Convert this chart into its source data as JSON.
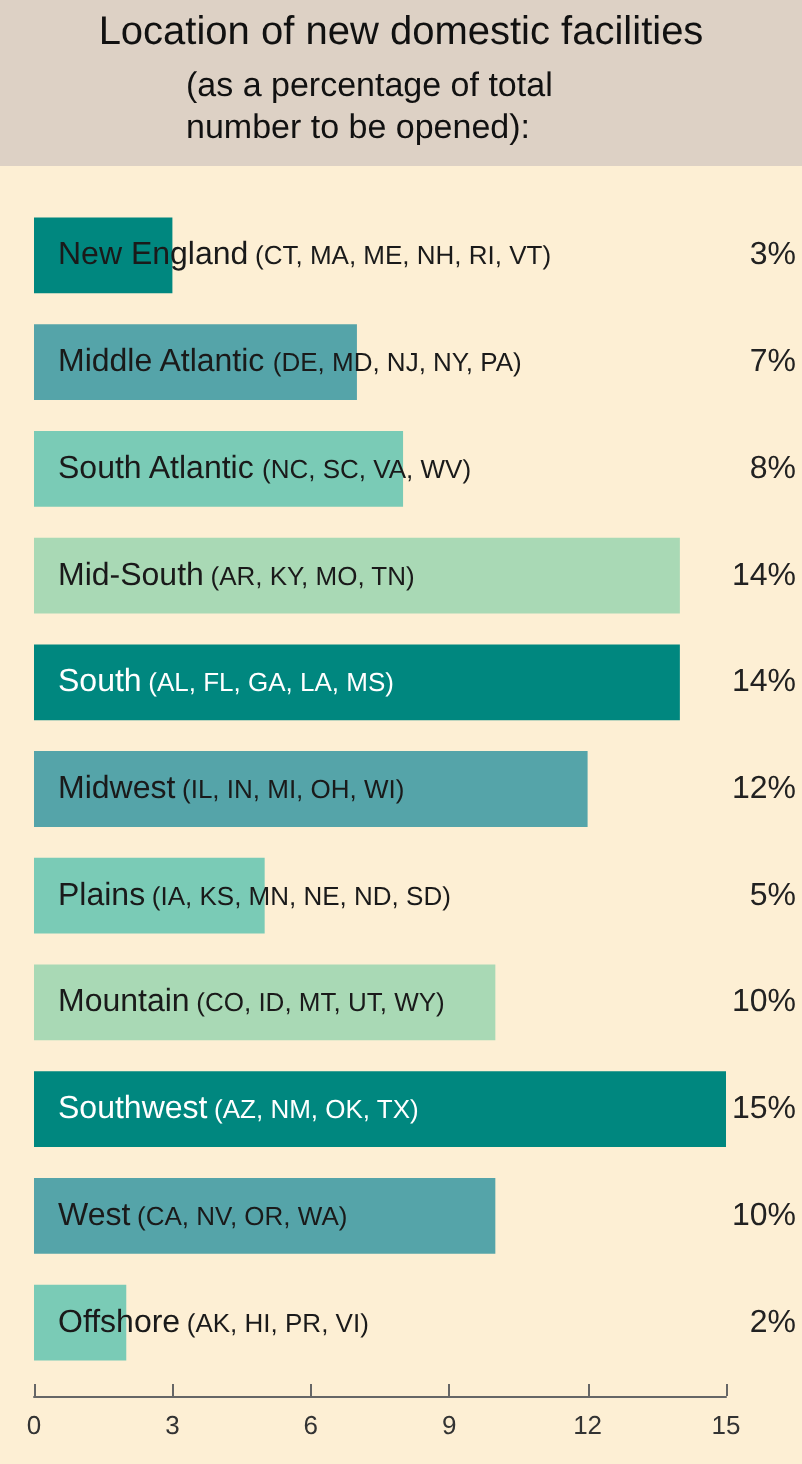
{
  "chart_data": {
    "type": "bar",
    "orientation": "horizontal",
    "title": "Location of new domestic facilities",
    "subtitle": "(as a percentage of total number to be opened):",
    "categories": [
      "New England (CT, MA, ME, NH, RI, VT)",
      "Middle Atlantic (DE, MD, NJ, NY, PA)",
      "South Atlantic (NC, SC, VA, WV)",
      "Mid-South (AR, KY, MO, TN)",
      "South (AL, FL, GA, LA, MS)",
      "Midwest (IL, IN, MI, OH, WI)",
      "Plains (IA, KS, MN, NE, ND, SD)",
      "Mountain (CO, ID, MT, UT, WY)",
      "Southwest (AZ, NM, OK, TX)",
      "West (CA, NV, OR, WA)",
      "Offshore (AK, HI, PR, VI)"
    ],
    "values": [
      3,
      7,
      8,
      14,
      14,
      12,
      5,
      10,
      15,
      10,
      2
    ],
    "colors": [
      "#00877f",
      "#55a4a9",
      "#7acbb6",
      "#a9d9b5",
      "#00877f",
      "#55a4a9",
      "#7acbb6",
      "#a9d9b5",
      "#00877f",
      "#55a4a9",
      "#7acbb6"
    ],
    "value_labels": [
      "3%",
      "7%",
      "8%",
      "14%",
      "14%",
      "12%",
      "5%",
      "10%",
      "15%",
      "10%",
      "2%"
    ],
    "xlim": [
      0,
      15
    ],
    "xticks": [
      0,
      3,
      6,
      9,
      12,
      15
    ],
    "grid": false
  }
}
